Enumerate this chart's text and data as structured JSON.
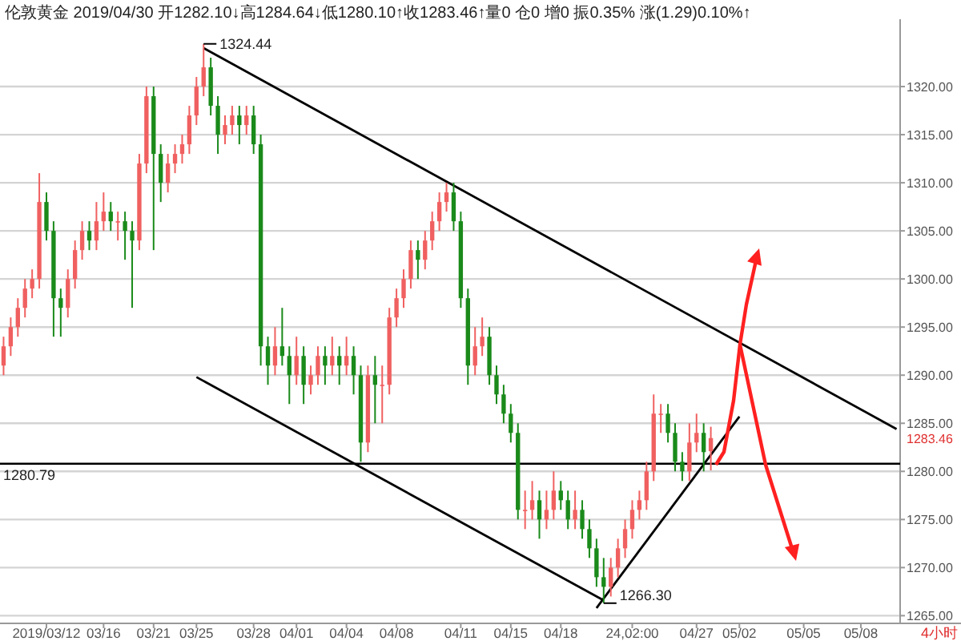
{
  "chart_data": {
    "type": "candlestick",
    "title": "伦敦黄金 2019/04/30 开1282.10↓高1284.64↓低1280.10↑收1283.46↑量0 仓0 增0 振0.35% 涨(1.29)0.10%↑",
    "categories": [
      null,
      null,
      null,
      null,
      null,
      null,
      "2019/03/12",
      null,
      null,
      null,
      null,
      null,
      null,
      null,
      "03/16",
      null,
      null,
      null,
      null,
      null,
      null,
      "03/21",
      null,
      null,
      null,
      null,
      null,
      "03/25",
      null,
      null,
      null,
      null,
      null,
      null,
      null,
      "03/28",
      null,
      null,
      null,
      null,
      null,
      "04/01",
      null,
      null,
      null,
      null,
      null,
      null,
      "04/04",
      null,
      null,
      null,
      null,
      null,
      null,
      "04/08",
      null,
      null,
      null,
      null,
      null,
      null,
      null,
      null,
      "04/11",
      null,
      null,
      null,
      null,
      null,
      null,
      "04/15",
      null,
      null,
      null,
      null,
      null,
      null,
      "04/18",
      null,
      null,
      null,
      null,
      null,
      null,
      null,
      null,
      null,
      "24,02:00",
      null,
      null,
      null,
      null,
      null,
      null,
      null,
      null,
      "04/27",
      null,
      null,
      null,
      null,
      null,
      "05/02",
      null,
      null,
      null,
      null,
      null,
      null,
      null,
      null,
      "05/05",
      null,
      null,
      null,
      null,
      null,
      null,
      null,
      "05/08",
      null,
      null,
      null,
      null,
      null
    ],
    "ohlc": [
      [
        1291,
        1294,
        1290,
        1293
      ],
      [
        1293,
        1296,
        1292,
        1295
      ],
      [
        1295,
        1298,
        1294,
        1297
      ],
      [
        1297,
        1300,
        1296,
        1299
      ],
      [
        1299,
        1301,
        1298,
        1300
      ],
      [
        1300,
        1311,
        1299,
        1308
      ],
      [
        1308,
        1309,
        1304,
        1305
      ],
      [
        1305,
        1306,
        1294,
        1298
      ],
      [
        1298,
        1299,
        1294,
        1297
      ],
      [
        1297,
        1301,
        1296,
        1300
      ],
      [
        1300,
        1304,
        1299,
        1303
      ],
      [
        1303,
        1306,
        1302,
        1305
      ],
      [
        1305,
        1306,
        1303,
        1304
      ],
      [
        1304,
        1308,
        1303,
        1306
      ],
      [
        1306,
        1309,
        1305,
        1307
      ],
      [
        1307,
        1308,
        1305,
        1306
      ],
      [
        1306,
        1307,
        1304,
        1306
      ],
      [
        1306,
        1307,
        1302,
        1305
      ],
      [
        1305,
        1306,
        1297,
        1304
      ],
      [
        1304,
        1313,
        1303,
        1312
      ],
      [
        1312,
        1320,
        1311,
        1319
      ],
      [
        1319,
        1320,
        1303,
        1313
      ],
      [
        1313,
        1314,
        1308,
        1310
      ],
      [
        1310,
        1313,
        1309,
        1312
      ],
      [
        1312,
        1314,
        1311,
        1313
      ],
      [
        1313,
        1315,
        1312,
        1314
      ],
      [
        1314,
        1318,
        1313,
        1317
      ],
      [
        1317,
        1321,
        1316,
        1320
      ],
      [
        1320,
        1324.44,
        1319,
        1322
      ],
      [
        1322,
        1323,
        1317,
        1318
      ],
      [
        1318,
        1319,
        1313,
        1315
      ],
      [
        1315,
        1317,
        1314,
        1316
      ],
      [
        1316,
        1318,
        1315,
        1317
      ],
      [
        1317,
        1318,
        1314,
        1316
      ],
      [
        1316,
        1318,
        1315,
        1317
      ],
      [
        1317,
        1318,
        1313,
        1314
      ],
      [
        1314,
        1315,
        1291,
        1293
      ],
      [
        1293,
        1294,
        1289,
        1291
      ],
      [
        1291,
        1295,
        1290,
        1293
      ],
      [
        1293,
        1297,
        1291,
        1292
      ],
      [
        1292,
        1293,
        1287,
        1290
      ],
      [
        1290,
        1294,
        1289,
        1292
      ],
      [
        1292,
        1293,
        1287,
        1289
      ],
      [
        1289,
        1291,
        1288,
        1290
      ],
      [
        1290,
        1293,
        1289,
        1292
      ],
      [
        1292,
        1293,
        1289,
        1291
      ],
      [
        1291,
        1294,
        1290,
        1292
      ],
      [
        1292,
        1293,
        1289,
        1291
      ],
      [
        1291,
        1294,
        1290,
        1292
      ],
      [
        1292,
        1293,
        1288,
        1290
      ],
      [
        1290,
        1291,
        1281,
        1283
      ],
      [
        1283,
        1291,
        1282,
        1290
      ],
      [
        1290,
        1292,
        1285,
        1289
      ],
      [
        1289,
        1291,
        1285,
        1289
      ],
      [
        1289,
        1297,
        1288,
        1296
      ],
      [
        1296,
        1299,
        1295,
        1298
      ],
      [
        1298,
        1301,
        1297,
        1300
      ],
      [
        1300,
        1304,
        1299,
        1303
      ],
      [
        1303,
        1304,
        1300,
        1302
      ],
      [
        1302,
        1305,
        1301,
        1304
      ],
      [
        1304,
        1307,
        1303,
        1306
      ],
      [
        1306,
        1309,
        1305,
        1308
      ],
      [
        1308,
        1310,
        1307,
        1309
      ],
      [
        1309,
        1310,
        1305,
        1306
      ],
      [
        1306,
        1307,
        1297,
        1298
      ],
      [
        1298,
        1299,
        1289,
        1291
      ],
      [
        1291,
        1295,
        1290,
        1293
      ],
      [
        1293,
        1296,
        1292,
        1294
      ],
      [
        1294,
        1295,
        1289,
        1290
      ],
      [
        1290,
        1291,
        1287,
        1288
      ],
      [
        1288,
        1289,
        1285,
        1286
      ],
      [
        1286,
        1287,
        1283,
        1284
      ],
      [
        1284,
        1285,
        1275,
        1276
      ],
      [
        1276,
        1278,
        1274,
        1276
      ],
      [
        1276,
        1279,
        1275,
        1277
      ],
      [
        1277,
        1278,
        1273,
        1275
      ],
      [
        1275,
        1278,
        1274,
        1276
      ],
      [
        1276,
        1280,
        1275,
        1278
      ],
      [
        1278,
        1279,
        1276,
        1277
      ],
      [
        1277,
        1278,
        1274,
        1275
      ],
      [
        1275,
        1278,
        1274,
        1276
      ],
      [
        1276,
        1277,
        1273,
        1274
      ],
      [
        1274,
        1275,
        1271,
        1272
      ],
      [
        1272,
        1273,
        1268,
        1269
      ],
      [
        1269,
        1271,
        1266.3,
        1268
      ],
      [
        1268,
        1271,
        1267,
        1270
      ],
      [
        1270,
        1273,
        1269,
        1272
      ],
      [
        1272,
        1275,
        1271,
        1274
      ],
      [
        1274,
        1277,
        1273,
        1276
      ],
      [
        1276,
        1278,
        1275,
        1277
      ],
      [
        1277,
        1281,
        1276,
        1280
      ],
      [
        1280,
        1288,
        1279,
        1286
      ],
      [
        1286,
        1287,
        1284,
        1286
      ],
      [
        1286,
        1287,
        1283,
        1284
      ],
      [
        1284,
        1285,
        1280,
        1281
      ],
      [
        1281,
        1282,
        1279,
        1280
      ],
      [
        1280,
        1285,
        1279,
        1283
      ],
      [
        1283,
        1286,
        1282,
        1284
      ],
      [
        1284,
        1285,
        1280,
        1282
      ],
      [
        1282.1,
        1284.64,
        1280.1,
        1283.46
      ],
      null,
      null,
      null,
      null,
      null,
      null,
      null,
      null,
      null,
      null,
      null,
      null,
      null,
      null,
      null,
      null,
      null,
      null,
      null,
      null,
      null,
      null,
      null,
      null,
      null,
      null
    ],
    "series": [
      {
        "type": "line",
        "color": "#000000",
        "values": [
          null,
          null,
          null,
          null,
          null,
          null,
          null,
          null,
          null,
          null,
          null,
          null,
          null,
          null,
          null,
          null,
          null,
          null,
          null,
          null,
          null,
          null,
          null,
          null,
          null,
          null,
          null,
          null,
          1324,
          null,
          null,
          null,
          null,
          null,
          null,
          null,
          null,
          null,
          null,
          null,
          null,
          null,
          null,
          null,
          null,
          null,
          null,
          null,
          null,
          null,
          null,
          null,
          null,
          null,
          null,
          null,
          null,
          null,
          null,
          null,
          null,
          null,
          null,
          null,
          null,
          null,
          null,
          null,
          null,
          null,
          null,
          null,
          null,
          null,
          null,
          null,
          null,
          null,
          null,
          null,
          null,
          null,
          null,
          null,
          null,
          null,
          null,
          null,
          null,
          null,
          null,
          null,
          null,
          null,
          null,
          null,
          null,
          null,
          null,
          null,
          null,
          null,
          null,
          null,
          null,
          null,
          null,
          null,
          null,
          null,
          null,
          null,
          null,
          null,
          null,
          null,
          null,
          null,
          null,
          null,
          null,
          null,
          null,
          null,
          null,
          1284.4
        ]
      },
      {
        "type": "line",
        "color": "#000000",
        "values": [
          null,
          null,
          null,
          null,
          null,
          null,
          null,
          null,
          null,
          null,
          null,
          null,
          null,
          null,
          null,
          null,
          null,
          null,
          null,
          null,
          null,
          null,
          null,
          null,
          null,
          null,
          null,
          1289.8,
          null,
          null,
          null,
          null,
          null,
          null,
          null,
          null,
          null,
          null,
          null,
          null,
          null,
          null,
          null,
          null,
          null,
          null,
          null,
          null,
          null,
          null,
          null,
          null,
          null,
          null,
          null,
          null,
          null,
          null,
          null,
          null,
          null,
          null,
          null,
          null,
          null,
          null,
          null,
          null,
          null,
          null,
          null,
          null,
          null,
          null,
          null,
          null,
          null,
          null,
          null,
          null,
          null,
          null,
          null,
          null,
          1266.6,
          null,
          null,
          null,
          null,
          null,
          null,
          null,
          null,
          null,
          null,
          null,
          null,
          null,
          null,
          null,
          null,
          null,
          null,
          null,
          null,
          null,
          null,
          null,
          null,
          null,
          null,
          null,
          null,
          null,
          null,
          null,
          null,
          null,
          null,
          null,
          null,
          null,
          null,
          null,
          null,
          null
        ]
      },
      {
        "type": "line",
        "color": "#000000",
        "values": [
          null,
          null,
          null,
          null,
          null,
          null,
          null,
          null,
          null,
          null,
          null,
          null,
          null,
          null,
          null,
          null,
          null,
          null,
          null,
          null,
          null,
          null,
          null,
          null,
          null,
          null,
          null,
          null,
          null,
          null,
          null,
          null,
          null,
          null,
          null,
          null,
          null,
          null,
          null,
          null,
          null,
          null,
          null,
          null,
          null,
          null,
          null,
          null,
          null,
          null,
          null,
          null,
          null,
          null,
          null,
          null,
          null,
          null,
          null,
          null,
          null,
          null,
          null,
          null,
          null,
          null,
          null,
          null,
          null,
          null,
          null,
          null,
          null,
          null,
          null,
          null,
          null,
          null,
          null,
          null,
          null,
          null,
          null,
          1265.8,
          null,
          null,
          null,
          null,
          null,
          null,
          null,
          null,
          null,
          null,
          null,
          null,
          null,
          null,
          null,
          null,
          null,
          null,
          null,
          1285.7,
          null,
          null,
          null,
          null,
          null,
          null,
          null,
          null,
          null,
          null,
          null,
          null,
          null,
          null,
          null,
          null,
          null,
          null,
          null,
          null,
          null,
          null
        ]
      }
    ],
    "ylim": [
      1264.2,
      1327
    ],
    "yticks": [
      {
        "value": 1265,
        "label": "1265.00"
      },
      {
        "value": 1270,
        "label": "1270.00"
      },
      {
        "value": 1275,
        "label": "1275.00"
      },
      {
        "value": 1280,
        "label": "1280.00"
      },
      {
        "value": 1285,
        "label": "1285.00"
      },
      {
        "value": 1290,
        "label": "1290.00"
      },
      {
        "value": 1295,
        "label": "1295.00"
      },
      {
        "value": 1300,
        "label": "1300.00"
      },
      {
        "value": 1305,
        "label": "1305.00"
      },
      {
        "value": 1310,
        "label": "1310.00"
      },
      {
        "value": 1315,
        "label": "1315.00"
      },
      {
        "value": 1320,
        "label": "1320.00"
      }
    ],
    "grid": "y",
    "ref_lines": [
      {
        "axis": "y",
        "value": 1280.79,
        "label": "1280.79",
        "color": "#000000"
      }
    ],
    "annotations": [
      "1324.44",
      "1266.30",
      {
        "text": "1283.46",
        "y": 1283.46
      },
      "4小时"
    ]
  }
}
